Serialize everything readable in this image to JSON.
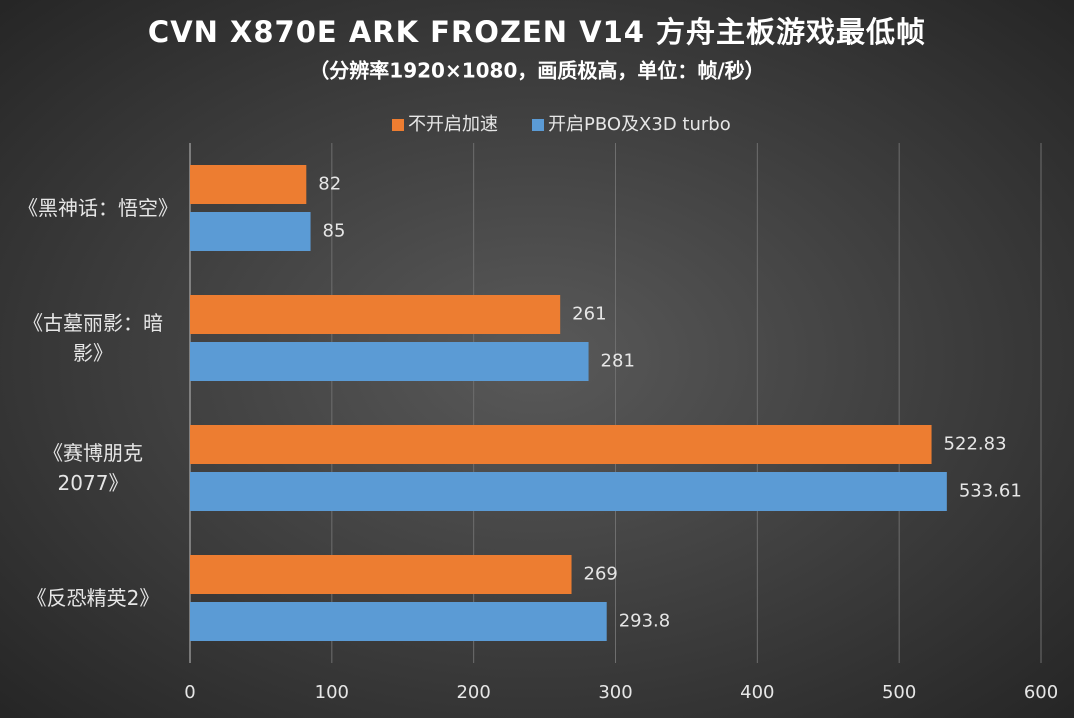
{
  "chart_data": {
    "type": "bar",
    "orientation": "horizontal",
    "title": "CVN X870E ARK FROZEN V14 方舟主板游戏最低帧",
    "subtitle": "（分辨率1920×1080，画质极高，单位：帧/秒）",
    "categories": [
      "《黑神话：悟空》",
      "《古墓丽影：暗影》",
      "《赛博朋克2077》",
      "《反恐精英2》"
    ],
    "series": [
      {
        "name": "不开启加速",
        "color": "#ed7d31",
        "values": [
          82,
          261,
          522.83,
          269
        ]
      },
      {
        "name": "开启PBO及X3D turbo",
        "color": "#5b9bd5",
        "values": [
          85,
          281,
          533.61,
          293.8
        ]
      }
    ],
    "xlim": [
      0,
      600
    ],
    "xticks": [
      0,
      100,
      200,
      300,
      400,
      500,
      600
    ],
    "grid": true,
    "legend": "top"
  }
}
